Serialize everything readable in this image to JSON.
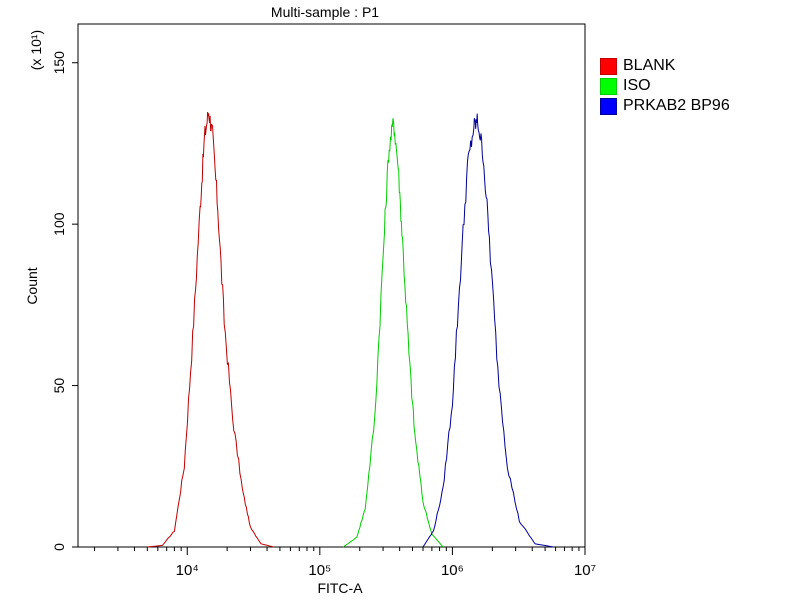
{
  "chart_data": {
    "type": "area",
    "title": "Multi-sample : P1",
    "xlabel": "FITC-A",
    "ylabel": "Count",
    "y_multiplier_label": "(x 10¹)",
    "x_scale": "log",
    "xlim": [
      1500,
      10000000
    ],
    "ylim": [
      0,
      162
    ],
    "x_tick_labels": [
      "10⁴",
      "10⁵",
      "10⁶",
      "10⁷"
    ],
    "x_ticks": [
      10000,
      100000,
      1000000,
      10000000
    ],
    "y_ticks": [
      0,
      50,
      100,
      150
    ],
    "grid": false,
    "legend_position": "top-right",
    "series": [
      {
        "name": "BLANK",
        "color": "#c00000",
        "swatch": "#ff0000",
        "points": [
          [
            5000,
            0
          ],
          [
            6500,
            0.5
          ],
          [
            8000,
            5
          ],
          [
            9500,
            25
          ],
          [
            11000,
            65
          ],
          [
            12500,
            105
          ],
          [
            13500,
            127
          ],
          [
            14500,
            135
          ],
          [
            15500,
            128
          ],
          [
            17000,
            105
          ],
          [
            19000,
            70
          ],
          [
            22000,
            40
          ],
          [
            26000,
            18
          ],
          [
            30000,
            6
          ],
          [
            36000,
            1
          ],
          [
            45000,
            0
          ]
        ]
      },
      {
        "name": "ISO",
        "color": "#00cc00",
        "swatch": "#00ff00",
        "points": [
          [
            150000,
            0
          ],
          [
            190000,
            3
          ],
          [
            220000,
            12
          ],
          [
            260000,
            40
          ],
          [
            300000,
            90
          ],
          [
            330000,
            122
          ],
          [
            360000,
            132
          ],
          [
            390000,
            118
          ],
          [
            420000,
            95
          ],
          [
            470000,
            60
          ],
          [
            520000,
            35
          ],
          [
            600000,
            14
          ],
          [
            700000,
            4
          ],
          [
            850000,
            0
          ]
        ]
      },
      {
        "name": "PRKAB2 BP96",
        "color": "#000099",
        "swatch": "#0000ff",
        "points": [
          [
            600000,
            0
          ],
          [
            720000,
            5
          ],
          [
            850000,
            18
          ],
          [
            1000000,
            45
          ],
          [
            1150000,
            85
          ],
          [
            1300000,
            118
          ],
          [
            1450000,
            130
          ],
          [
            1550000,
            132
          ],
          [
            1700000,
            122
          ],
          [
            1900000,
            95
          ],
          [
            2200000,
            55
          ],
          [
            2600000,
            25
          ],
          [
            3200000,
            8
          ],
          [
            4200000,
            1
          ],
          [
            5800000,
            0
          ]
        ]
      }
    ]
  }
}
